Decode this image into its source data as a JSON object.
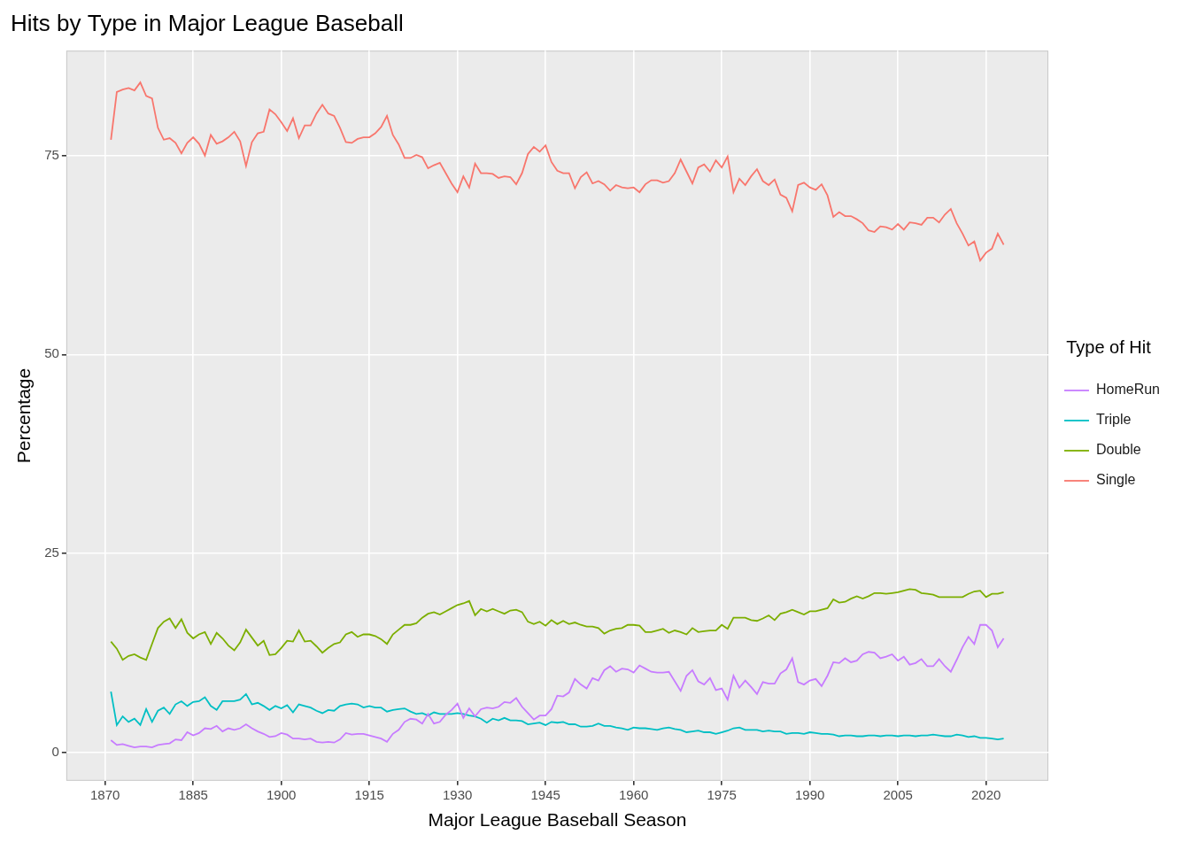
{
  "chart_data": {
    "type": "line",
    "title": "Hits by Type in Major League Baseball",
    "x_label": "Major League Baseball Season",
    "y_label": "Percentage",
    "legend_title": "Type of Hit",
    "legend": "right",
    "grid": true,
    "xlim": [
      1863.4,
      2030.6
    ],
    "xticks": [
      1870,
      1885,
      1900,
      1915,
      1930,
      1945,
      1960,
      1975,
      1990,
      2005,
      2020
    ],
    "ylim": [
      -3.6,
      88.2
    ],
    "yticks": [
      0,
      25,
      50,
      75
    ],
    "x": [
      1871,
      1872,
      1873,
      1874,
      1875,
      1876,
      1877,
      1878,
      1879,
      1880,
      1881,
      1882,
      1883,
      1884,
      1885,
      1886,
      1887,
      1888,
      1889,
      1890,
      1891,
      1892,
      1893,
      1894,
      1895,
      1896,
      1897,
      1898,
      1899,
      1900,
      1901,
      1902,
      1903,
      1904,
      1905,
      1906,
      1907,
      1908,
      1909,
      1910,
      1911,
      1912,
      1913,
      1914,
      1915,
      1916,
      1917,
      1918,
      1919,
      1920,
      1921,
      1922,
      1923,
      1924,
      1925,
      1926,
      1927,
      1928,
      1929,
      1930,
      1931,
      1932,
      1933,
      1934,
      1935,
      1936,
      1937,
      1938,
      1939,
      1940,
      1941,
      1942,
      1943,
      1944,
      1945,
      1946,
      1947,
      1948,
      1949,
      1950,
      1951,
      1952,
      1953,
      1954,
      1955,
      1956,
      1957,
      1958,
      1959,
      1960,
      1961,
      1962,
      1963,
      1964,
      1965,
      1966,
      1967,
      1968,
      1969,
      1970,
      1971,
      1972,
      1973,
      1974,
      1975,
      1976,
      1977,
      1978,
      1979,
      1980,
      1981,
      1982,
      1983,
      1984,
      1985,
      1986,
      1987,
      1988,
      1989,
      1990,
      1991,
      1992,
      1993,
      1994,
      1995,
      1996,
      1997,
      1998,
      1999,
      2000,
      2001,
      2002,
      2003,
      2004,
      2005,
      2006,
      2007,
      2008,
      2009,
      2010,
      2011,
      2012,
      2013,
      2014,
      2015,
      2016,
      2017,
      2018,
      2019,
      2020,
      2021,
      2022,
      2023
    ],
    "series": [
      {
        "name": "HomeRun",
        "color": "#C77CFF",
        "values": [
          1.5,
          0.9,
          1.0,
          0.8,
          0.6,
          0.7,
          0.7,
          0.6,
          0.9,
          1.0,
          1.1,
          1.6,
          1.5,
          2.5,
          2.1,
          2.4,
          3.0,
          2.9,
          3.3,
          2.6,
          3.0,
          2.8,
          3.0,
          3.5,
          3.0,
          2.6,
          2.3,
          1.9,
          2.0,
          2.4,
          2.2,
          1.7,
          1.7,
          1.6,
          1.7,
          1.3,
          1.2,
          1.3,
          1.2,
          1.6,
          2.4,
          2.2,
          2.3,
          2.3,
          2.1,
          1.9,
          1.7,
          1.3,
          2.3,
          2.8,
          3.8,
          4.2,
          4.1,
          3.6,
          4.8,
          3.6,
          3.8,
          4.7,
          5.3,
          6.1,
          4.3,
          5.5,
          4.5,
          5.4,
          5.6,
          5.5,
          5.7,
          6.3,
          6.2,
          6.8,
          5.7,
          4.9,
          4.1,
          4.6,
          4.6,
          5.4,
          7.1,
          7.0,
          7.5,
          9.2,
          8.5,
          8.0,
          9.3,
          9.0,
          10.3,
          10.8,
          10.1,
          10.5,
          10.4,
          10.0,
          10.9,
          10.5,
          10.1,
          10.0,
          10.0,
          10.1,
          8.9,
          7.7,
          9.6,
          10.3,
          8.9,
          8.5,
          9.3,
          7.8,
          8.0,
          6.6,
          9.6,
          8.1,
          9.0,
          8.2,
          7.3,
          8.8,
          8.6,
          8.6,
          9.9,
          10.4,
          11.8,
          8.8,
          8.5,
          9.0,
          9.2,
          8.3,
          9.6,
          11.3,
          11.2,
          11.8,
          11.3,
          11.5,
          12.3,
          12.6,
          12.5,
          11.8,
          12.0,
          12.3,
          11.5,
          12.0,
          11.0,
          11.2,
          11.7,
          10.8,
          10.8,
          11.7,
          10.8,
          10.1,
          11.6,
          13.2,
          14.5,
          13.6,
          16.0,
          16.0,
          15.3,
          13.2,
          14.3
        ]
      },
      {
        "name": "Triple",
        "color": "#00BFC4",
        "values": [
          7.6,
          3.4,
          4.5,
          3.8,
          4.2,
          3.4,
          5.4,
          3.8,
          5.2,
          5.6,
          4.8,
          6.0,
          6.4,
          5.8,
          6.3,
          6.4,
          6.9,
          5.8,
          5.3,
          6.4,
          6.4,
          6.4,
          6.6,
          7.3,
          6.0,
          6.2,
          5.8,
          5.3,
          5.8,
          5.5,
          5.9,
          5.0,
          6.0,
          5.8,
          5.6,
          5.2,
          4.9,
          5.3,
          5.2,
          5.8,
          6.0,
          6.1,
          6.0,
          5.6,
          5.8,
          5.6,
          5.6,
          5.1,
          5.3,
          5.4,
          5.5,
          5.1,
          4.8,
          4.9,
          4.6,
          5.0,
          4.8,
          4.8,
          4.8,
          4.9,
          4.8,
          4.6,
          4.5,
          4.2,
          3.7,
          4.2,
          4.0,
          4.3,
          4.0,
          4.0,
          3.9,
          3.5,
          3.6,
          3.7,
          3.4,
          3.8,
          3.7,
          3.8,
          3.5,
          3.5,
          3.2,
          3.2,
          3.3,
          3.6,
          3.3,
          3.3,
          3.1,
          3.0,
          2.8,
          3.1,
          3.0,
          3.0,
          2.9,
          2.8,
          3.0,
          3.1,
          2.9,
          2.8,
          2.5,
          2.6,
          2.7,
          2.5,
          2.5,
          2.3,
          2.5,
          2.7,
          3.0,
          3.1,
          2.8,
          2.8,
          2.8,
          2.6,
          2.7,
          2.6,
          2.6,
          2.3,
          2.4,
          2.4,
          2.3,
          2.5,
          2.4,
          2.3,
          2.3,
          2.2,
          2.0,
          2.1,
          2.1,
          2.0,
          2.0,
          2.1,
          2.1,
          2.0,
          2.1,
          2.1,
          2.0,
          2.1,
          2.1,
          2.0,
          2.1,
          2.1,
          2.2,
          2.1,
          2.0,
          2.0,
          2.2,
          2.1,
          1.9,
          2.0,
          1.8,
          1.8,
          1.7,
          1.6,
          1.7
        ]
      },
      {
        "name": "Double",
        "color": "#7CAE00",
        "values": [
          13.9,
          13.0,
          11.6,
          12.1,
          12.3,
          11.9,
          11.6,
          13.6,
          15.6,
          16.4,
          16.8,
          15.6,
          16.7,
          15.0,
          14.3,
          14.8,
          15.1,
          13.6,
          15.0,
          14.3,
          13.4,
          12.8,
          13.8,
          15.4,
          14.4,
          13.4,
          14.0,
          12.2,
          12.3,
          13.1,
          14.0,
          13.9,
          15.3,
          13.9,
          14.0,
          13.3,
          12.5,
          13.1,
          13.6,
          13.8,
          14.8,
          15.1,
          14.5,
          14.8,
          14.8,
          14.6,
          14.2,
          13.6,
          14.8,
          15.4,
          16.0,
          16.0,
          16.2,
          16.9,
          17.4,
          17.6,
          17.3,
          17.7,
          18.1,
          18.5,
          18.7,
          19.0,
          17.2,
          18.0,
          17.7,
          18.0,
          17.7,
          17.4,
          17.8,
          17.9,
          17.6,
          16.4,
          16.1,
          16.4,
          15.9,
          16.6,
          16.1,
          16.5,
          16.1,
          16.3,
          16.0,
          15.8,
          15.8,
          15.6,
          14.9,
          15.3,
          15.5,
          15.6,
          16.0,
          16.0,
          15.9,
          15.1,
          15.1,
          15.3,
          15.5,
          15.0,
          15.3,
          15.1,
          14.8,
          15.6,
          15.1,
          15.2,
          15.3,
          15.3,
          16.0,
          15.5,
          16.9,
          16.9,
          16.9,
          16.6,
          16.5,
          16.8,
          17.2,
          16.6,
          17.4,
          17.6,
          17.9,
          17.6,
          17.3,
          17.7,
          17.7,
          17.9,
          18.1,
          19.2,
          18.8,
          18.9,
          19.3,
          19.6,
          19.3,
          19.6,
          20.0,
          20.0,
          19.9,
          20.0,
          20.1,
          20.3,
          20.5,
          20.4,
          20.0,
          19.9,
          19.8,
          19.5,
          19.5,
          19.5,
          19.5,
          19.5,
          19.9,
          20.2,
          20.3,
          19.5,
          19.9,
          19.9,
          20.1
        ]
      },
      {
        "name": "Single",
        "color": "#F8766D",
        "values": [
          77.0,
          83.0,
          83.3,
          83.5,
          83.2,
          84.2,
          82.5,
          82.2,
          78.5,
          77.0,
          77.2,
          76.6,
          75.3,
          76.6,
          77.3,
          76.5,
          75.0,
          77.6,
          76.5,
          76.8,
          77.3,
          78.0,
          76.8,
          73.7,
          76.7,
          77.8,
          78.0,
          80.8,
          80.2,
          79.2,
          78.1,
          79.7,
          77.2,
          78.8,
          78.8,
          80.3,
          81.4,
          80.3,
          80.0,
          78.5,
          76.7,
          76.6,
          77.1,
          77.3,
          77.3,
          77.8,
          78.6,
          80.0,
          77.6,
          76.4,
          74.7,
          74.7,
          75.1,
          74.8,
          73.4,
          73.8,
          74.1,
          72.8,
          71.5,
          70.4,
          72.4,
          71.0,
          74.0,
          72.8,
          72.8,
          72.7,
          72.2,
          72.4,
          72.3,
          71.4,
          72.8,
          75.2,
          76.1,
          75.5,
          76.3,
          74.2,
          73.1,
          72.8,
          72.8,
          70.9,
          72.3,
          72.9,
          71.5,
          71.8,
          71.4,
          70.6,
          71.3,
          71.0,
          70.9,
          71.0,
          70.4,
          71.4,
          71.9,
          71.9,
          71.6,
          71.8,
          72.8,
          74.5,
          73.0,
          71.5,
          73.5,
          73.9,
          73.0,
          74.4,
          73.5,
          74.9,
          70.4,
          72.1,
          71.3,
          72.4,
          73.3,
          71.8,
          71.3,
          72.0,
          70.1,
          69.7,
          68.0,
          71.3,
          71.6,
          71.0,
          70.7,
          71.4,
          70.0,
          67.3,
          67.9,
          67.4,
          67.4,
          67.0,
          66.5,
          65.6,
          65.4,
          66.1,
          66.0,
          65.7,
          66.4,
          65.7,
          66.6,
          66.5,
          66.3,
          67.2,
          67.2,
          66.6,
          67.6,
          68.3,
          66.5,
          65.2,
          63.7,
          64.2,
          61.8,
          62.8,
          63.3,
          65.2,
          63.8
        ]
      }
    ]
  }
}
